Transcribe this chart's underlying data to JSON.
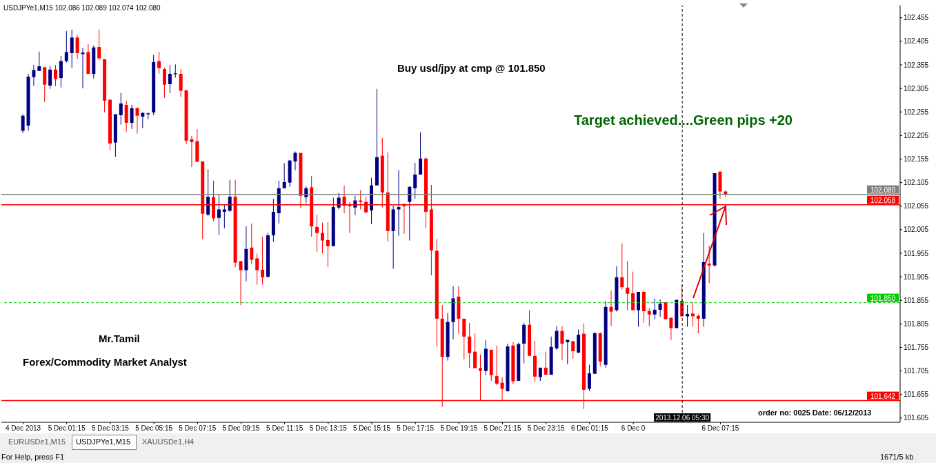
{
  "chart_data": {
    "type": "candlestick",
    "title": "USDJPYe1,M15 102.086 102.089 102.074 102.080",
    "annotations": [
      "Buy usd/jpy at cmp @ 101.850",
      "Target achieved....Green pips +20",
      "Mr.Tamil",
      "Forex/Commodity Market Analyst",
      "order no: 0025 Date: 06/12/2013",
      "EURUSDe1,M15",
      "USDJPYe1,M15",
      "XAUUSDe1,H4",
      "For Help, press F1",
      "1671/5 kb"
    ],
    "x": [
      "2013-12-04T23:15",
      "2013-12-04T23:30",
      "2013-12-04T23:45",
      "2013-12-05T00:00",
      "2013-12-05T00:15",
      "2013-12-05T00:30",
      "2013-12-05T00:45",
      "2013-12-05T01:00",
      "2013-12-05T01:15",
      "2013-12-05T01:30",
      "2013-12-05T01:45",
      "2013-12-05T02:00",
      "2013-12-05T02:15",
      "2013-12-05T02:30",
      "2013-12-05T02:45",
      "2013-12-05T03:00",
      "2013-12-05T03:15",
      "2013-12-05T03:30",
      "2013-12-05T03:45",
      "2013-12-05T04:00",
      "2013-12-05T04:15",
      "2013-12-05T04:30",
      "2013-12-05T04:45",
      "2013-12-05T05:00",
      "2013-12-05T05:15",
      "2013-12-05T05:30",
      "2013-12-05T05:45",
      "2013-12-05T06:00",
      "2013-12-05T06:15",
      "2013-12-05T06:30",
      "2013-12-05T06:45",
      "2013-12-05T07:00",
      "2013-12-05T07:15",
      "2013-12-05T07:30",
      "2013-12-05T07:45",
      "2013-12-05T08:00",
      "2013-12-05T08:15",
      "2013-12-05T08:30",
      "2013-12-05T08:45",
      "2013-12-05T09:00",
      "2013-12-05T09:15",
      "2013-12-05T09:30",
      "2013-12-05T09:45",
      "2013-12-05T10:00",
      "2013-12-05T10:15",
      "2013-12-05T10:30",
      "2013-12-05T10:45",
      "2013-12-05T11:00",
      "2013-12-05T11:15",
      "2013-12-05T11:30",
      "2013-12-05T11:45",
      "2013-12-05T12:00",
      "2013-12-05T12:15",
      "2013-12-05T12:30",
      "2013-12-05T12:45",
      "2013-12-05T13:00",
      "2013-12-05T13:15",
      "2013-12-05T13:30",
      "2013-12-05T13:45",
      "2013-12-05T14:00",
      "2013-12-05T14:15",
      "2013-12-05T14:30",
      "2013-12-05T14:45",
      "2013-12-05T15:00",
      "2013-12-05T15:15",
      "2013-12-05T15:30",
      "2013-12-05T15:45",
      "2013-12-05T16:00",
      "2013-12-05T16:15",
      "2013-12-05T16:30",
      "2013-12-05T16:45",
      "2013-12-05T17:00",
      "2013-12-05T17:15",
      "2013-12-05T17:30",
      "2013-12-05T17:45",
      "2013-12-05T18:00",
      "2013-12-05T18:15",
      "2013-12-05T18:30",
      "2013-12-05T18:45",
      "2013-12-05T19:00",
      "2013-12-05T19:15",
      "2013-12-05T19:30",
      "2013-12-05T19:45",
      "2013-12-05T20:00",
      "2013-12-05T20:15",
      "2013-12-05T20:30",
      "2013-12-05T20:45",
      "2013-12-05T21:00",
      "2013-12-05T21:15",
      "2013-12-05T21:30",
      "2013-12-05T21:45",
      "2013-12-05T22:00",
      "2013-12-05T22:15",
      "2013-12-05T22:30",
      "2013-12-05T22:45",
      "2013-12-05T23:00",
      "2013-12-05T23:15",
      "2013-12-05T23:30",
      "2013-12-05T23:45",
      "2013-12-06T00:00",
      "2013-12-06T00:15",
      "2013-12-06T00:30",
      "2013-12-06T00:45",
      "2013-12-06T01:00",
      "2013-12-06T01:15",
      "2013-12-06T01:30",
      "2013-12-06T01:45",
      "2013-12-06T02:00",
      "2013-12-06T02:15",
      "2013-12-06T02:30",
      "2013-12-06T02:45",
      "2013-12-06T03:00",
      "2013-12-06T03:15",
      "2013-12-06T03:30",
      "2013-12-06T03:45",
      "2013-12-06T04:00",
      "2013-12-06T04:15",
      "2013-12-06T04:30",
      "2013-12-06T04:45",
      "2013-12-06T05:00",
      "2013-12-06T05:15",
      "2013-12-06T05:30",
      "2013-12-06T05:45",
      "2013-12-06T06:00",
      "2013-12-06T06:15",
      "2013-12-06T06:30",
      "2013-12-06T06:45",
      "2013-12-06T07:00",
      "2013-12-06T07:15",
      "2013-12-06T07:30"
    ],
    "ohlc": [
      [
        102.215,
        102.25,
        102.21,
        102.247
      ],
      [
        102.226,
        102.336,
        102.215,
        102.33
      ],
      [
        102.329,
        102.355,
        102.31,
        102.344
      ],
      [
        102.342,
        102.383,
        102.342,
        102.352
      ],
      [
        102.35,
        102.35,
        102.276,
        102.313
      ],
      [
        102.311,
        102.352,
        102.304,
        102.345
      ],
      [
        102.345,
        102.355,
        102.31,
        102.325
      ],
      [
        102.327,
        102.374,
        102.307,
        102.363
      ],
      [
        102.363,
        102.427,
        102.36,
        102.382
      ],
      [
        102.38,
        102.43,
        102.349,
        102.413
      ],
      [
        102.413,
        102.418,
        102.367,
        102.38
      ],
      [
        102.378,
        102.391,
        102.305,
        102.381
      ],
      [
        102.382,
        102.399,
        102.336,
        102.336
      ],
      [
        102.336,
        102.396,
        102.326,
        102.392
      ],
      [
        102.393,
        102.43,
        102.364,
        102.369
      ],
      [
        102.367,
        102.367,
        102.254,
        102.279
      ],
      [
        102.281,
        102.281,
        102.174,
        102.188
      ],
      [
        102.19,
        102.25,
        102.16,
        102.25
      ],
      [
        102.248,
        102.295,
        102.228,
        102.273
      ],
      [
        102.27,
        102.279,
        102.213,
        102.232
      ],
      [
        102.232,
        102.27,
        102.219,
        102.263
      ],
      [
        102.263,
        102.265,
        102.209,
        102.247
      ],
      [
        102.245,
        102.254,
        102.221,
        102.253
      ],
      [
        102.25,
        102.254,
        102.24,
        102.252
      ],
      [
        102.254,
        102.376,
        102.248,
        102.361
      ],
      [
        102.363,
        102.383,
        102.336,
        102.348
      ],
      [
        102.346,
        102.349,
        102.285,
        102.313
      ],
      [
        102.314,
        102.355,
        102.295,
        102.336
      ],
      [
        102.335,
        102.356,
        102.328,
        102.337
      ],
      [
        102.336,
        102.346,
        102.287,
        102.3
      ],
      [
        102.301,
        102.301,
        102.187,
        102.194
      ],
      [
        102.197,
        102.204,
        102.138,
        102.191
      ],
      [
        102.193,
        102.219,
        102.149,
        102.149
      ],
      [
        102.15,
        102.15,
        101.985,
        102.039
      ],
      [
        102.037,
        102.133,
        102.034,
        102.075
      ],
      [
        102.074,
        102.109,
        102.023,
        102.029
      ],
      [
        102.03,
        102.078,
        101.993,
        102.048
      ],
      [
        102.043,
        102.058,
        102.008,
        102.048
      ],
      [
        102.045,
        102.111,
        102.043,
        102.075
      ],
      [
        102.075,
        102.111,
        101.925,
        101.935
      ],
      [
        101.938,
        101.939,
        101.845,
        101.919
      ],
      [
        101.919,
        102.012,
        101.895,
        101.964
      ],
      [
        101.967,
        102.018,
        101.932,
        101.941
      ],
      [
        101.944,
        101.954,
        101.888,
        101.919
      ],
      [
        101.92,
        101.99,
        101.888,
        101.904
      ],
      [
        101.905,
        101.998,
        101.903,
        101.993
      ],
      [
        101.993,
        102.07,
        101.979,
        102.043
      ],
      [
        102.04,
        102.109,
        102.018,
        102.093
      ],
      [
        102.093,
        102.146,
        102.093,
        102.106
      ],
      [
        102.105,
        102.152,
        102.096,
        102.152
      ],
      [
        102.15,
        102.171,
        102.131,
        102.168
      ],
      [
        102.168,
        102.168,
        102.051,
        102.077
      ],
      [
        102.074,
        102.097,
        102.061,
        102.093
      ],
      [
        102.095,
        102.119,
        101.99,
        102.012
      ],
      [
        102.011,
        102.037,
        101.957,
        101.998
      ],
      [
        101.998,
        102.02,
        101.955,
        101.982
      ],
      [
        101.983,
        102.021,
        101.926,
        101.97
      ],
      [
        101.97,
        102.073,
        101.97,
        102.053
      ],
      [
        102.052,
        102.083,
        102.048,
        102.073
      ],
      [
        102.075,
        102.099,
        102.04,
        102.056
      ],
      [
        102.059,
        102.064,
        101.998,
        102.055
      ],
      [
        102.052,
        102.077,
        102.036,
        102.067
      ],
      [
        102.067,
        102.089,
        102.048,
        102.064
      ],
      [
        102.064,
        102.075,
        102.04,
        102.042
      ],
      [
        102.046,
        102.115,
        102.017,
        102.099
      ],
      [
        102.099,
        102.304,
        102.099,
        102.159
      ],
      [
        102.162,
        102.2,
        102.052,
        102.084
      ],
      [
        102.084,
        102.169,
        101.98,
        102.002
      ],
      [
        102.002,
        102.056,
        101.922,
        102.048
      ],
      [
        102.048,
        102.131,
        101.992,
        102.053
      ],
      [
        102.059,
        102.062,
        101.996,
        102.055
      ],
      [
        102.064,
        102.097,
        101.982,
        102.096
      ],
      [
        102.093,
        102.147,
        102.071,
        102.122
      ],
      [
        102.122,
        102.212,
        102.122,
        102.156
      ],
      [
        102.156,
        102.159,
        102.008,
        102.043
      ],
      [
        102.048,
        102.1,
        101.908,
        101.961
      ],
      [
        101.96,
        101.985,
        101.757,
        101.816
      ],
      [
        101.816,
        101.845,
        101.629,
        101.735
      ],
      [
        101.735,
        101.828,
        101.727,
        101.809
      ],
      [
        101.809,
        101.885,
        101.772,
        101.859
      ],
      [
        101.863,
        101.885,
        101.784,
        101.816
      ],
      [
        101.816,
        101.816,
        101.73,
        101.778
      ],
      [
        101.778,
        101.807,
        101.711,
        101.743
      ],
      [
        101.746,
        101.785,
        101.711,
        101.711
      ],
      [
        101.711,
        101.74,
        101.643,
        101.705
      ],
      [
        101.705,
        101.771,
        101.696,
        101.752
      ],
      [
        101.75,
        101.75,
        101.684,
        101.696
      ],
      [
        101.694,
        101.759,
        101.675,
        101.678
      ],
      [
        101.68,
        101.692,
        101.643,
        101.667
      ],
      [
        101.662,
        101.763,
        101.661,
        101.757
      ],
      [
        101.759,
        101.766,
        101.677,
        101.683
      ],
      [
        101.684,
        101.765,
        101.684,
        101.762
      ],
      [
        101.763,
        101.807,
        101.721,
        101.803
      ],
      [
        101.803,
        101.834,
        101.737,
        101.737
      ],
      [
        101.737,
        101.769,
        101.681,
        101.693
      ],
      [
        101.692,
        101.712,
        101.684,
        101.712
      ],
      [
        101.712,
        101.746,
        101.697,
        101.697
      ],
      [
        101.697,
        101.778,
        101.697,
        101.756
      ],
      [
        101.753,
        101.8,
        101.75,
        101.79
      ],
      [
        101.79,
        101.8,
        101.728,
        101.763
      ],
      [
        101.766,
        101.771,
        101.719,
        101.771
      ],
      [
        101.768,
        101.769,
        101.731,
        101.747
      ],
      [
        101.744,
        101.793,
        101.743,
        101.782
      ],
      [
        101.784,
        101.806,
        101.624,
        101.665
      ],
      [
        101.667,
        101.718,
        101.662,
        101.7
      ],
      [
        101.699,
        101.788,
        101.699,
        101.785
      ],
      [
        101.785,
        101.787,
        101.715,
        101.725
      ],
      [
        101.718,
        101.853,
        101.712,
        101.841
      ],
      [
        101.841,
        101.876,
        101.8,
        101.831
      ],
      [
        101.834,
        101.927,
        101.831,
        101.904
      ],
      [
        101.904,
        101.976,
        101.878,
        101.883
      ],
      [
        101.882,
        101.938,
        101.834,
        101.869
      ],
      [
        101.87,
        101.916,
        101.834,
        101.834
      ],
      [
        101.834,
        101.873,
        101.799,
        101.873
      ],
      [
        101.873,
        101.876,
        101.807,
        101.832
      ],
      [
        101.832,
        101.838,
        101.8,
        101.825
      ],
      [
        101.825,
        101.859,
        101.815,
        101.835
      ],
      [
        101.835,
        101.857,
        101.82,
        101.848
      ],
      [
        101.851,
        101.851,
        101.815,
        101.815
      ],
      [
        101.818,
        101.818,
        101.771,
        101.796
      ],
      [
        101.796,
        101.856,
        101.796,
        101.856
      ],
      [
        101.854,
        101.888,
        101.821,
        101.821
      ],
      [
        101.821,
        101.845,
        101.799,
        101.826
      ],
      [
        101.827,
        101.851,
        101.799,
        101.821
      ],
      [
        101.822,
        101.825,
        101.785,
        101.816
      ],
      [
        101.816,
        101.998,
        101.799,
        101.936
      ],
      [
        101.933,
        101.971,
        101.891,
        101.929
      ],
      [
        101.929,
        102.125,
        101.927,
        102.125
      ],
      [
        102.128,
        102.13,
        102.071,
        102.086
      ],
      [
        102.086,
        102.089,
        102.074,
        102.08
      ]
    ],
    "colors": [
      "#000080",
      "#000080",
      "#000080",
      "#000080",
      "#ff0000",
      "#000080",
      "#ff0000",
      "#000080",
      "#000080",
      "#000080",
      "#ff0000",
      "#000080",
      "#ff0000",
      "#000080",
      "#ff0000",
      "#ff0000",
      "#ff0000",
      "#000080",
      "#000080",
      "#ff0000",
      "#000080",
      "#ff0000",
      "#000080",
      "#000080",
      "#000080",
      "#ff0000",
      "#ff0000",
      "#000080",
      "#000080",
      "#ff0000",
      "#ff0000",
      "#ff0000",
      "#ff0000",
      "#ff0000",
      "#000080",
      "#ff0000",
      "#000080",
      "#000080",
      "#000080",
      "#ff0000",
      "#ff0000",
      "#000080",
      "#ff0000",
      "#ff0000",
      "#ff0000",
      "#000080",
      "#000080",
      "#000080",
      "#000080",
      "#000080",
      "#000080",
      "#ff0000",
      "#000080",
      "#ff0000",
      "#ff0000",
      "#ff0000",
      "#ff0000",
      "#000080",
      "#000080",
      "#ff0000",
      "#ff0000",
      "#000080",
      "#ff0000",
      "#ff0000",
      "#000080",
      "#000080",
      "#ff0000",
      "#ff0000",
      "#000080",
      "#000080",
      "#ff0000",
      "#000080",
      "#000080",
      "#000080",
      "#ff0000",
      "#ff0000",
      "#ff0000",
      "#ff0000",
      "#000080",
      "#000080",
      "#ff0000",
      "#ff0000",
      "#ff0000",
      "#ff0000",
      "#ff0000",
      "#000080",
      "#ff0000",
      "#ff0000",
      "#ff0000",
      "#000080",
      "#ff0000",
      "#000080",
      "#000080",
      "#ff0000",
      "#ff0000",
      "#000080",
      "#ff0000",
      "#000080",
      "#000080",
      "#ff0000",
      "#000080",
      "#ff0000",
      "#000080",
      "#ff0000",
      "#000080",
      "#000080",
      "#ff0000",
      "#000080",
      "#ff0000",
      "#000080",
      "#ff0000",
      "#ff0000",
      "#ff0000",
      "#000080",
      "#ff0000",
      "#ff0000",
      "#000080",
      "#000080",
      "#ff0000",
      "#ff0000",
      "#000080",
      "#ff0000",
      "#000080",
      "#ff0000",
      "#ff0000",
      "#000080",
      "#ff0000",
      "#000080",
      "#ff0000",
      "#ff0000"
    ],
    "xlim": [
      "2013-12-04T22:15",
      "2013-12-06T15:30"
    ],
    "xticks": [
      {
        "value": "2013-12-04T23:15",
        "label": "4 Dec 2013"
      },
      {
        "value": "2013-12-05T01:15",
        "label": "5 Dec 01:15"
      },
      {
        "value": "2013-12-05T03:15",
        "label": "5 Dec 03:15"
      },
      {
        "value": "2013-12-05T05:15",
        "label": "5 Dec 05:15"
      },
      {
        "value": "2013-12-05T07:15",
        "label": "5 Dec 07:15"
      },
      {
        "value": "2013-12-05T09:15",
        "label": "5 Dec 09:15"
      },
      {
        "value": "2013-12-05T11:15",
        "label": "5 Dec 11:15"
      },
      {
        "value": "2013-12-05T13:15",
        "label": "5 Dec 13:15"
      },
      {
        "value": "2013-12-05T15:15",
        "label": "5 Dec 15:15"
      },
      {
        "value": "2013-12-05T17:15",
        "label": "5 Dec 17:15"
      },
      {
        "value": "2013-12-05T19:15",
        "label": "5 Dec 19:15"
      },
      {
        "value": "2013-12-05T21:15",
        "label": "5 Dec 21:15"
      },
      {
        "value": "2013-12-05T23:15",
        "label": "5 Dec 23:15"
      },
      {
        "value": "2013-12-06T01:15",
        "label": "6 Dec 01:15"
      },
      {
        "value": "2013-12-06T03:15",
        "label": "6 Dec 0"
      },
      {
        "value": "2013-12-06T07:15",
        "label": "6 Dec 07:15"
      }
    ],
    "ylim": [
      101.596,
      102.481
    ],
    "yticks": [
      101.605,
      101.655,
      101.705,
      101.755,
      101.805,
      101.855,
      101.905,
      101.955,
      102.005,
      102.055,
      102.105,
      102.155,
      102.205,
      102.255,
      102.305,
      102.355,
      102.405,
      102.455
    ],
    "ref_lines": [
      {
        "axis": "y",
        "value": 102.08,
        "label": "102.080",
        "color": "#808080",
        "line_style": "solid"
      },
      {
        "axis": "y",
        "value": 102.058,
        "label": "102.058",
        "color": "#ff0000",
        "line_style": "solid"
      },
      {
        "axis": "y",
        "value": 101.85,
        "label": "101.850",
        "color": "#00cc00",
        "line_style": "dashed"
      },
      {
        "axis": "y",
        "value": 101.642,
        "label": "101.642",
        "color": "#ff0000",
        "line_style": "solid"
      },
      {
        "axis": "x",
        "value": "2013-12-06T05:30",
        "label": "2013.12.06 05:30",
        "color": "#000000",
        "line_style": "dashed"
      }
    ]
  }
}
